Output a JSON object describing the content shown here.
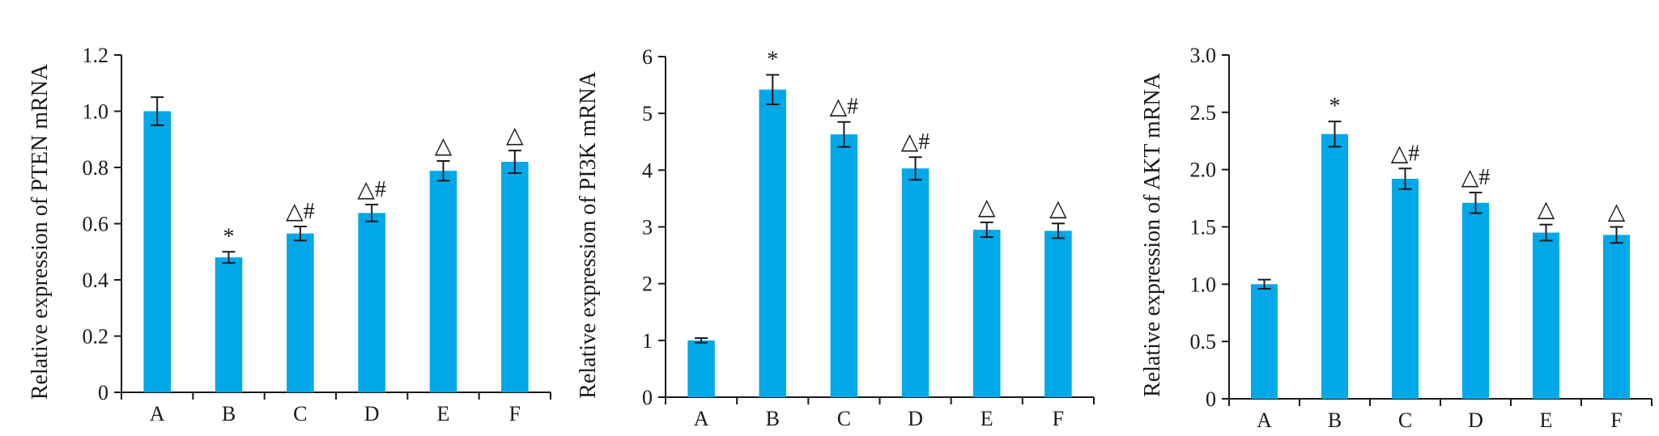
{
  "figure": {
    "bar_color": "#00a8e8",
    "axis_color": "#1a1a1a"
  },
  "chart_data": [
    {
      "type": "bar",
      "title": "",
      "xlabel": "",
      "ylabel": "Relative expression of PTEN mRNA",
      "categories": [
        "A",
        "B",
        "C",
        "D",
        "E",
        "F"
      ],
      "values": [
        1.0,
        0.48,
        0.565,
        0.638,
        0.788,
        0.82
      ],
      "errors": [
        0.05,
        0.02,
        0.025,
        0.03,
        0.035,
        0.04
      ],
      "annotations": [
        "",
        "*",
        "△#",
        "△#",
        "△",
        "△"
      ],
      "ylim": [
        0,
        1.2
      ],
      "yticks": [
        0,
        0.2,
        0.4,
        0.6,
        0.8,
        1.0,
        1.2
      ],
      "ytick_labels": [
        "0",
        "0.2",
        "0.4",
        "0.6",
        "0.8",
        "1.0",
        "1.2"
      ],
      "grid": false,
      "legend": "none"
    },
    {
      "type": "bar",
      "title": "",
      "xlabel": "",
      "ylabel": "Relative expression of PI3K mRNA",
      "categories": [
        "A",
        "B",
        "C",
        "D",
        "E",
        "F"
      ],
      "values": [
        1.0,
        5.42,
        4.63,
        4.03,
        2.95,
        2.93
      ],
      "errors": [
        0.04,
        0.26,
        0.22,
        0.2,
        0.13,
        0.13
      ],
      "annotations": [
        "",
        "*",
        "△#",
        "△#",
        "△",
        "△"
      ],
      "ylim": [
        0,
        6
      ],
      "yticks": [
        0,
        1,
        2,
        3,
        4,
        5,
        6
      ],
      "ytick_labels": [
        "0",
        "1",
        "2",
        "3",
        "4",
        "5",
        "6"
      ],
      "grid": false,
      "legend": "none"
    },
    {
      "type": "bar",
      "title": "",
      "xlabel": "",
      "ylabel": "Relative expression of AKT mRNA",
      "categories": [
        "A",
        "B",
        "C",
        "D",
        "E",
        "F"
      ],
      "values": [
        1.0,
        2.31,
        1.92,
        1.71,
        1.45,
        1.43
      ],
      "errors": [
        0.04,
        0.11,
        0.09,
        0.09,
        0.07,
        0.07
      ],
      "annotations": [
        "",
        "*",
        "△#",
        "△#",
        "△",
        "△"
      ],
      "ylim": [
        0,
        3.0
      ],
      "yticks": [
        0,
        0.5,
        1.0,
        1.5,
        2.0,
        2.5,
        3.0
      ],
      "ytick_labels": [
        "0",
        "0.5",
        "1.0",
        "1.5",
        "2.0",
        "2.5",
        "3.0"
      ],
      "grid": false,
      "legend": "none"
    }
  ]
}
